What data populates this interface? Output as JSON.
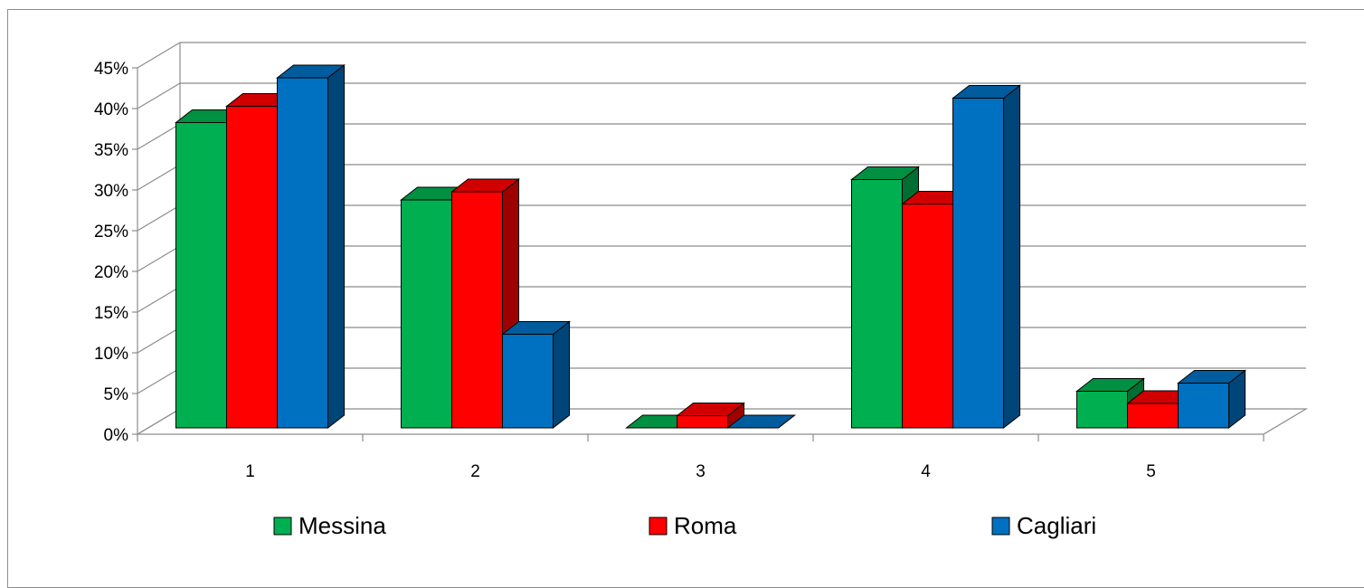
{
  "chart_data": {
    "type": "bar",
    "title": "",
    "xlabel": "",
    "ylabel": "",
    "categories": [
      "1",
      "2",
      "3",
      "4",
      "5"
    ],
    "series": [
      {
        "name": "Messina",
        "color": "#00B050",
        "values": [
          37.5,
          28.0,
          0.0,
          30.5,
          4.5
        ]
      },
      {
        "name": "Roma",
        "color": "#FF0000",
        "values": [
          39.5,
          29.0,
          1.5,
          27.5,
          3.0
        ]
      },
      {
        "name": "Cagliari",
        "color": "#0070C0",
        "values": [
          43.0,
          11.5,
          0.0,
          40.5,
          5.5
        ]
      }
    ],
    "yticks": [
      "0%",
      "5%",
      "10%",
      "15%",
      "20%",
      "25%",
      "30%",
      "35%",
      "40%",
      "45%"
    ],
    "ylim": [
      0,
      45
    ],
    "grid": true,
    "legend_position": "bottom",
    "style": "3d-clustered-column"
  }
}
